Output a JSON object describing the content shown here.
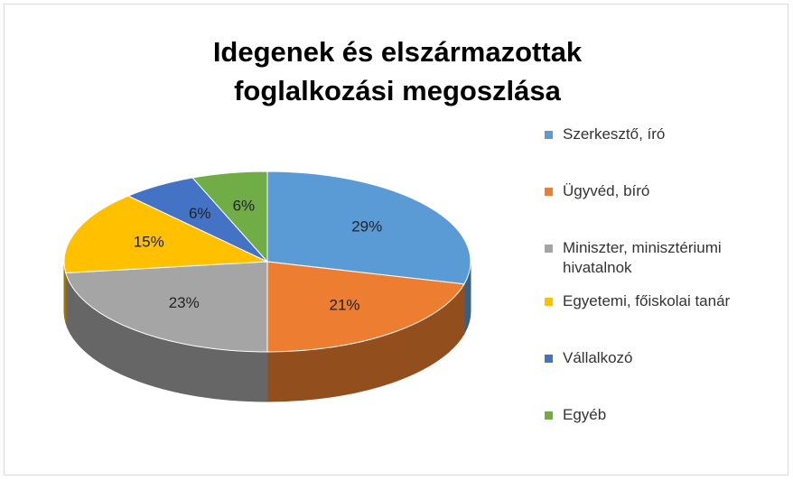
{
  "chart_data": {
    "type": "pie",
    "title": "Idegenek és elszármazottak foglalkozási megoszlása",
    "categories": [
      "Szerkesztő, író",
      "Ügyvéd, bíró",
      "Miniszter, minisztériumi hivatalnok",
      "Egyetemi, főiskolai tanár",
      "Vállalkozó",
      "Egyéb"
    ],
    "values": [
      29,
      21,
      23,
      15,
      6,
      6
    ],
    "value_labels": [
      "29%",
      "21%",
      "23%",
      "15%",
      "6%",
      "6%"
    ],
    "colors": [
      "#5b9bd5",
      "#ed7d31",
      "#a5a5a5",
      "#ffc000",
      "#4472c4",
      "#70ad47"
    ],
    "legend": "right"
  }
}
